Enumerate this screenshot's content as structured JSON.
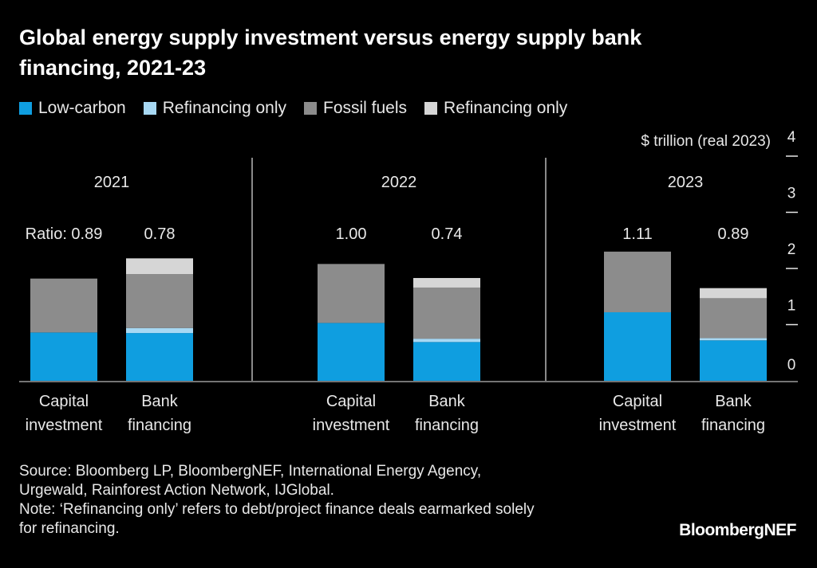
{
  "title": "Global energy supply investment versus energy supply bank financing, 2021-23",
  "legend": [
    {
      "label": "Low-carbon",
      "color": "#0f9ee0"
    },
    {
      "label": "Refinancing only",
      "color": "#a7d8f3"
    },
    {
      "label": "Fossil fuels",
      "color": "#8c8c8c"
    },
    {
      "label": "Refinancing only",
      "color": "#d6d6d6"
    }
  ],
  "chart_data": {
    "type": "bar",
    "stacked": true,
    "unit_label": "$ trillion (real 2023)",
    "ylim": [
      0,
      4
    ],
    "yticks": [
      "0",
      "1",
      "2",
      "3",
      "4"
    ],
    "groups": [
      {
        "year": "2021",
        "ratio_text": "Ratio: 0.89",
        "bars": [
          {
            "label_lines": [
              "Capital",
              "investment"
            ],
            "ratio": "",
            "segments": [
              0.86,
              0,
              0.96,
              0
            ]
          },
          {
            "label_lines": [
              "Bank",
              "financing"
            ],
            "ratio": "0.78",
            "segments": [
              0.85,
              0.09,
              0.96,
              0.28
            ]
          }
        ]
      },
      {
        "year": "2022",
        "ratio_text": "1.00",
        "bars": [
          {
            "label_lines": [
              "Capital",
              "investment"
            ],
            "ratio": "",
            "segments": [
              1.03,
              0,
              1.05,
              0
            ]
          },
          {
            "label_lines": [
              "Bank",
              "financing"
            ],
            "ratio": "0.74",
            "segments": [
              0.69,
              0.06,
              0.91,
              0.17
            ]
          }
        ]
      },
      {
        "year": "2023",
        "ratio_text": "1.11",
        "bars": [
          {
            "label_lines": [
              "Capital",
              "investment"
            ],
            "ratio": "",
            "segments": [
              1.22,
              0,
              1.08,
              0
            ]
          },
          {
            "label_lines": [
              "Bank",
              "financing"
            ],
            "ratio": "0.89",
            "segments": [
              0.72,
              0.04,
              0.71,
              0.18
            ]
          }
        ]
      }
    ],
    "segment_names": [
      "Low-carbon",
      "Refinancing only",
      "Fossil fuels",
      "Refinancing only"
    ],
    "segment_colors": [
      "#0f9ee0",
      "#a7d8f3",
      "#8c8c8c",
      "#d6d6d6"
    ]
  },
  "footnote": {
    "source_line1": "Source: Bloomberg LP, BloombergNEF, International Energy Agency,",
    "source_line2": "Urgewald, Rainforest Action Network, IJGlobal.",
    "note_line1": "Note: ‘Refinancing only’ refers to debt/project finance deals earmarked solely",
    "note_line2": "for refinancing."
  },
  "brand": "BloombergNEF"
}
